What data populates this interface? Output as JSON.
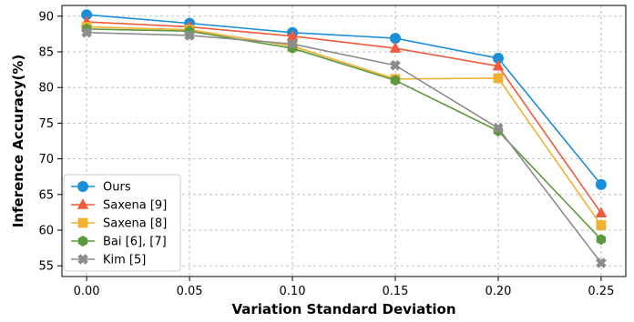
{
  "chart_data": {
    "type": "line",
    "title": "",
    "xlabel": "Variation Standard Deviation",
    "ylabel": "Inference Accuracy(%)",
    "x": [
      0.0,
      0.05,
      0.1,
      0.15,
      0.2,
      0.25
    ],
    "x_tick_labels": [
      "0.00",
      "0.05",
      "0.10",
      "0.15",
      "0.20",
      "0.25"
    ],
    "y_ticks": [
      55,
      60,
      65,
      70,
      75,
      80,
      85,
      90
    ],
    "xlim": [
      -0.012,
      0.262
    ],
    "ylim": [
      53.5,
      91.5
    ],
    "grid": true,
    "legend_position": "lower-left",
    "series": [
      {
        "name": "Ours",
        "color": "#1a8fd8",
        "marker": "circle",
        "values": [
          90.2,
          89.0,
          87.7,
          86.9,
          84.1,
          66.4
        ]
      },
      {
        "name": "Saxena [9]",
        "color": "#f15a3c",
        "marker": "triangle",
        "values": [
          89.2,
          88.5,
          87.2,
          85.5,
          83.0,
          62.4
        ]
      },
      {
        "name": "Saxena [8]",
        "color": "#f0b030",
        "marker": "square",
        "values": [
          88.5,
          88.1,
          85.8,
          81.2,
          81.3,
          60.7
        ]
      },
      {
        "name": "Bai [6], [7]",
        "color": "#5b9a3c",
        "marker": "hexagon",
        "values": [
          88.2,
          87.9,
          85.5,
          81.0,
          73.9,
          58.7
        ]
      },
      {
        "name": "Kim [5]",
        "color": "#8c8c8c",
        "marker": "x",
        "values": [
          87.7,
          87.3,
          86.1,
          83.1,
          74.3,
          55.4
        ]
      }
    ]
  }
}
